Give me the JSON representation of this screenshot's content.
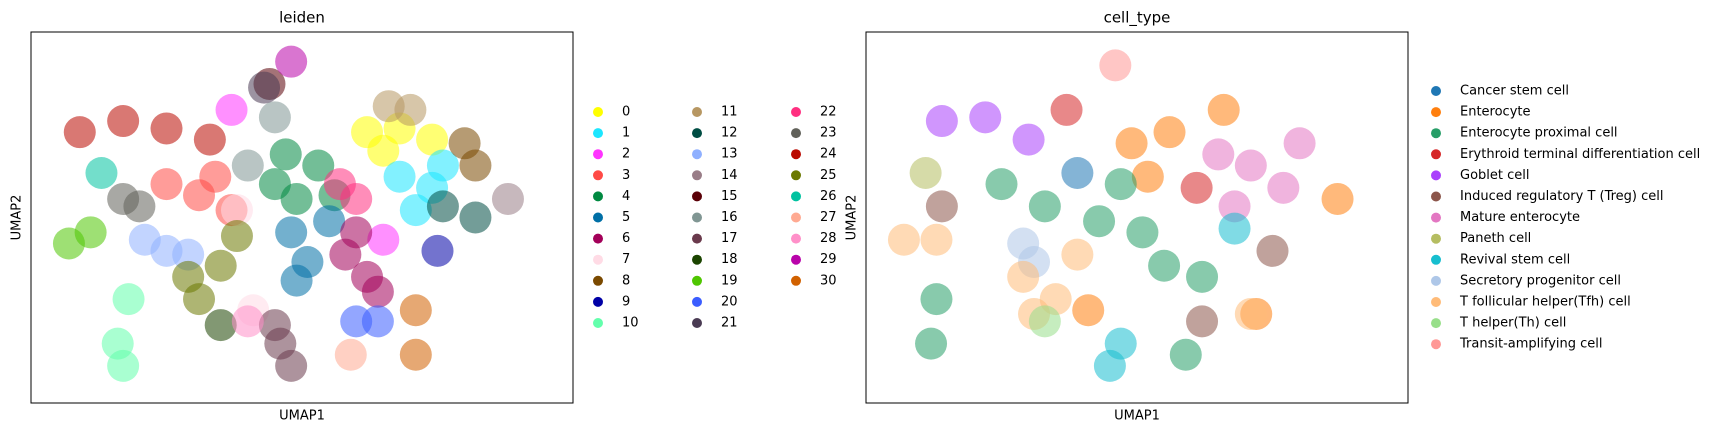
{
  "chart_data": [
    {
      "type": "scatter",
      "title": "leiden",
      "x_label": "UMAP1",
      "y_label": "UMAP2",
      "xlim": [
        0,
        100
      ],
      "ylim": [
        0,
        100
      ],
      "legend_loc": "right margin",
      "legend_columns": 3,
      "series": [
        {
          "name": "0",
          "color": "#FFFF00",
          "x": [
            62,
            68,
            74,
            65
          ],
          "y": [
            73,
            74,
            71,
            68
          ]
        },
        {
          "name": "1",
          "color": "#1CE6FF",
          "x": [
            68,
            74,
            71,
            76
          ],
          "y": [
            61,
            58,
            52,
            64
          ]
        },
        {
          "name": "2",
          "color": "#FF34FF",
          "x": [
            65,
            37
          ],
          "y": [
            44,
            79
          ]
        },
        {
          "name": "3",
          "color": "#FF4A46",
          "x": [
            25,
            31,
            37,
            34
          ],
          "y": [
            59,
            56,
            52,
            61
          ]
        },
        {
          "name": "4",
          "color": "#008941",
          "x": [
            47,
            53,
            49,
            56,
            45
          ],
          "y": [
            67,
            64,
            55,
            56,
            59
          ]
        },
        {
          "name": "5",
          "color": "#006FA6",
          "x": [
            48,
            51,
            55,
            49
          ],
          "y": [
            46,
            38,
            49,
            33
          ]
        },
        {
          "name": "6",
          "color": "#A30059",
          "x": [
            58,
            62,
            60,
            64
          ],
          "y": [
            40,
            34,
            46,
            30
          ]
        },
        {
          "name": "7",
          "color": "#FFDBE5",
          "x": [
            41,
            38
          ],
          "y": [
            25,
            52
          ]
        },
        {
          "name": "8",
          "color": "#7A4900",
          "x": [
            80,
            82
          ],
          "y": [
            70,
            64
          ]
        },
        {
          "name": "9",
          "color": "#0000A6",
          "x": [
            75
          ],
          "y": [
            41
          ]
        },
        {
          "name": "10",
          "color": "#63FFAC",
          "x": [
            16,
            17,
            18
          ],
          "y": [
            16,
            10,
            28
          ]
        },
        {
          "name": "11",
          "color": "#B79762",
          "x": [
            66,
            70
          ],
          "y": [
            80,
            79
          ]
        },
        {
          "name": "12",
          "color": "#004D43",
          "x": [
            76,
            82
          ],
          "y": [
            53,
            50
          ]
        },
        {
          "name": "13",
          "color": "#8FB0FF",
          "x": [
            25,
            29,
            21
          ],
          "y": [
            41,
            40,
            44
          ]
        },
        {
          "name": "14",
          "color": "#997D87",
          "x": [
            88
          ],
          "y": [
            55
          ]
        },
        {
          "name": "15",
          "color": "#5A0007",
          "x": [
            44
          ],
          "y": [
            86
          ]
        },
        {
          "name": "16",
          "color": "#809693",
          "x": [
            40,
            45
          ],
          "y": [
            64,
            77
          ]
        },
        {
          "name": "17",
          "color": "#6A3A4C",
          "x": [
            46,
            48,
            45
          ],
          "y": [
            16,
            10,
            21
          ]
        },
        {
          "name": "18",
          "color": "#1B4400",
          "x": [
            35
          ],
          "y": [
            21
          ]
        },
        {
          "name": "19",
          "color": "#4FC601",
          "x": [
            11,
            7
          ],
          "y": [
            46,
            43
          ]
        },
        {
          "name": "20",
          "color": "#3B5DFF",
          "x": [
            60,
            64
          ],
          "y": [
            22,
            22
          ]
        },
        {
          "name": "21",
          "color": "#4A3B53",
          "x": [
            43
          ],
          "y": [
            85
          ]
        },
        {
          "name": "22",
          "color": "#FF2F80",
          "x": [
            60,
            57
          ],
          "y": [
            55,
            59
          ]
        },
        {
          "name": "23",
          "color": "#61615A",
          "x": [
            20,
            17
          ],
          "y": [
            53,
            55
          ]
        },
        {
          "name": "24",
          "color": "#BA0900",
          "x": [
            9,
            17,
            25,
            33
          ],
          "y": [
            73,
            76,
            74,
            71
          ]
        },
        {
          "name": "25",
          "color": "#6B7900",
          "x": [
            35,
            31,
            38,
            29
          ],
          "y": [
            37,
            28,
            45,
            34
          ]
        },
        {
          "name": "26",
          "color": "#00C2A0",
          "x": [
            13
          ],
          "y": [
            62
          ]
        },
        {
          "name": "27",
          "color": "#FFAA92",
          "x": [
            59
          ],
          "y": [
            13
          ]
        },
        {
          "name": "28",
          "color": "#FF90C9",
          "x": [
            40
          ],
          "y": [
            22
          ]
        },
        {
          "name": "29",
          "color": "#B903AA",
          "x": [
            48
          ],
          "y": [
            92
          ]
        },
        {
          "name": "30",
          "color": "#D16100",
          "x": [
            71,
            71
          ],
          "y": [
            25,
            13
          ]
        }
      ]
    },
    {
      "type": "scatter",
      "title": "cell_type",
      "x_label": "UMAP1",
      "y_label": "UMAP2",
      "xlim": [
        0,
        100
      ],
      "ylim": [
        0,
        100
      ],
      "legend_loc": "right margin",
      "legend_columns": 1,
      "series": [
        {
          "name": "Cancer stem cell",
          "color": "#1f77b4",
          "x": [
            39
          ],
          "y": [
            62
          ]
        },
        {
          "name": "Enterocyte",
          "color": "#ff7f0e",
          "x": [
            49,
            56,
            52,
            66,
            87,
            41,
            72
          ],
          "y": [
            70,
            73,
            61,
            79,
            55,
            25,
            24
          ]
        },
        {
          "name": "Enterocyte proximal cell",
          "color": "#279e68",
          "x": [
            25,
            33,
            43,
            51,
            55,
            62,
            47,
            12,
            13,
            59
          ],
          "y": [
            59,
            53,
            49,
            46,
            37,
            34,
            59,
            16,
            28,
            13
          ]
        },
        {
          "name": "Erythroid terminal differentiation cell",
          "color": "#d62728",
          "x": [
            37,
            61
          ],
          "y": [
            79,
            58
          ]
        },
        {
          "name": "Goblet cell",
          "color": "#aa40fc",
          "x": [
            14,
            22,
            30
          ],
          "y": [
            76,
            77,
            71
          ]
        },
        {
          "name": "Induced regulatory T (Treg) cell",
          "color": "#8c564b",
          "x": [
            14,
            75,
            62
          ],
          "y": [
            53,
            41,
            22
          ]
        },
        {
          "name": "Mature enterocyte",
          "color": "#e377c2",
          "x": [
            65,
            71,
            77,
            68,
            80
          ],
          "y": [
            67,
            64,
            58,
            53,
            70
          ]
        },
        {
          "name": "Paneth cell",
          "color": "#b5bd61",
          "x": [
            11
          ],
          "y": [
            62
          ]
        },
        {
          "name": "Revival stem cell",
          "color": "#17becf",
          "x": [
            47,
            45,
            68
          ],
          "y": [
            16,
            10,
            47
          ]
        },
        {
          "name": "Secretory progenitor cell",
          "color": "#aec7e8",
          "x": [
            29,
            31
          ],
          "y": [
            43,
            38
          ]
        },
        {
          "name": "T follicular helper(Tfh) cell",
          "color": "#ffbb78",
          "x": [
            29,
            35,
            39,
            31,
            13,
            7,
            71
          ],
          "y": [
            34,
            28,
            40,
            24,
            44,
            44,
            24
          ]
        },
        {
          "name": "T helper(Th) cell",
          "color": "#98df8a",
          "x": [
            33
          ],
          "y": [
            22
          ]
        },
        {
          "name": "Transit-amplifying cell",
          "color": "#ff9896",
          "x": [
            46
          ],
          "y": [
            91
          ]
        }
      ]
    }
  ]
}
